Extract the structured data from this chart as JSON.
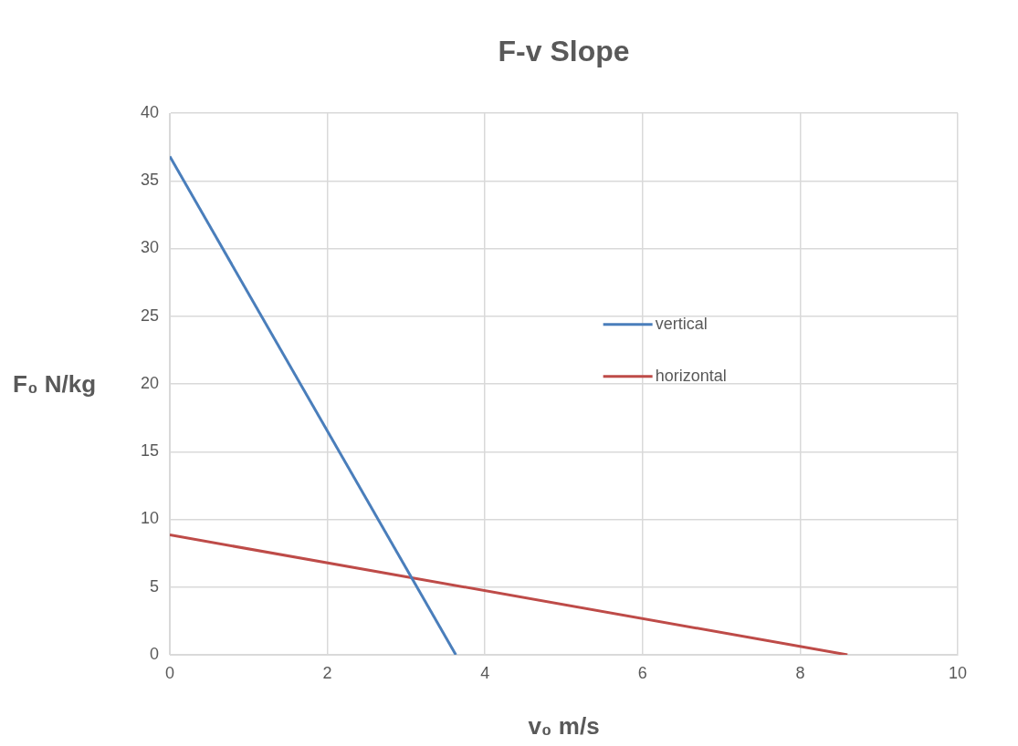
{
  "chart_data": {
    "type": "line",
    "title": "F-v Slope",
    "xlabel": "v₀ m/s",
    "ylabel": "F₀ N/kg",
    "series": [
      {
        "name": "vertical",
        "color": "#4a7ebb",
        "x": [
          0,
          3.63
        ],
        "values": [
          36.8,
          0
        ]
      },
      {
        "name": "horizontal",
        "color": "#be4b48",
        "x": [
          0,
          8.6
        ],
        "values": [
          8.85,
          0
        ]
      }
    ],
    "xlim": [
      0,
      10
    ],
    "xticks": [
      0,
      2,
      4,
      6,
      8,
      10
    ],
    "ylim": [
      0,
      40
    ],
    "yticks": [
      0,
      5,
      10,
      15,
      20,
      25,
      30,
      35,
      40
    ],
    "grid": true,
    "legend": "right",
    "marker": "none",
    "line_style": "solid"
  }
}
